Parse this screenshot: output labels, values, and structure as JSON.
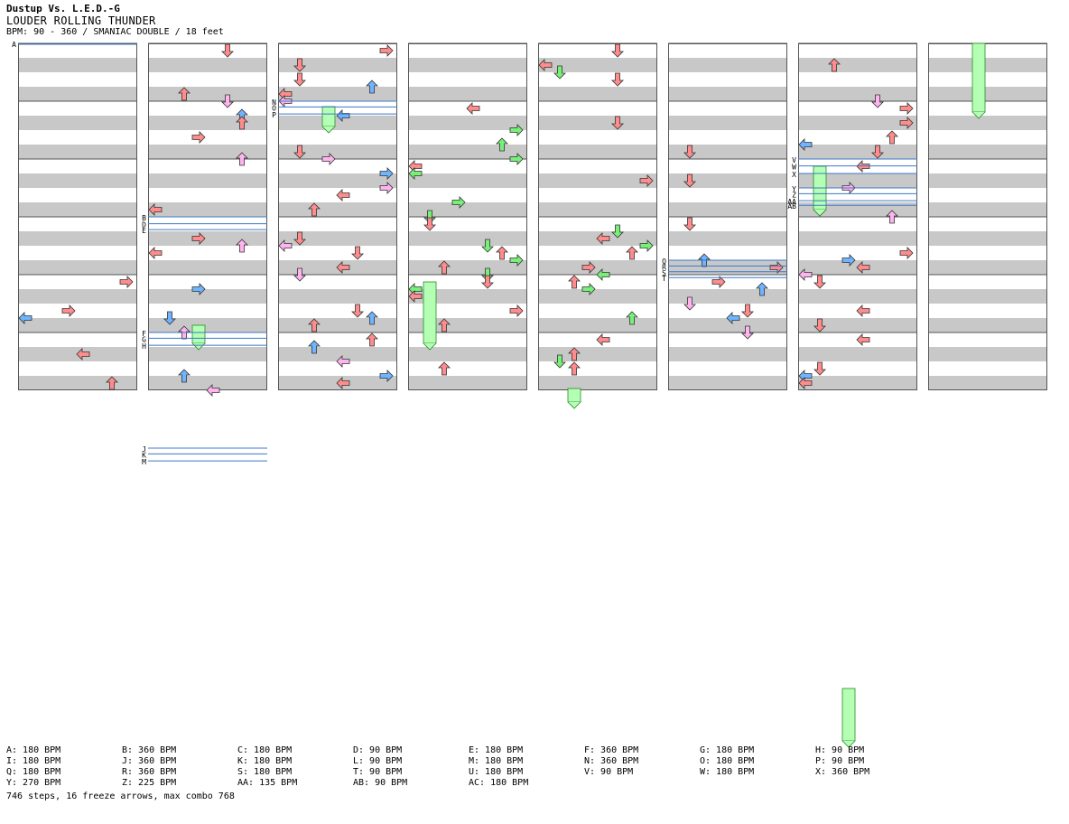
{
  "header": {
    "artist_line": "Dustup Vs. L.E.D.-G",
    "title": "LOUDER ROLLING THUNDER",
    "info": "BPM: 90 - 360 / SMANIAC DOUBLE / 18 feet"
  },
  "chart_view": {
    "columns": 8,
    "measures_per_column": 6,
    "lanes": [
      "left",
      "down",
      "up",
      "right",
      "left",
      "down",
      "up",
      "right"
    ],
    "colors": {
      "row_shade": "#c8c8c8",
      "border": "#555555",
      "red_arrow": "#ff8c8c",
      "blue_arrow": "#6fb4ff",
      "pink_arrow": "#ffb4f0",
      "green_arrow": "#78f078",
      "freeze_body": "#b4ffb4",
      "bpm_line": "#3c78c8"
    },
    "bpm_markers": [
      {
        "label": "A",
        "column": 1,
        "measure_pos": 0.0
      },
      {
        "label": "B",
        "column": 2,
        "measure_pos": 3.0
      },
      {
        "label": "D",
        "column": 2,
        "measure_pos": 3.12
      },
      {
        "label": "E",
        "column": 2,
        "measure_pos": 3.22
      },
      {
        "label": "F",
        "column": 2,
        "measure_pos": 5.0
      },
      {
        "label": "G",
        "column": 2,
        "measure_pos": 5.1
      },
      {
        "label": "H",
        "column": 2,
        "measure_pos": 5.22
      },
      {
        "label": "J",
        "column": 2,
        "measure_pos": 7.0
      },
      {
        "label": "K",
        "column": 2,
        "measure_pos": 7.1
      },
      {
        "label": "M",
        "column": 2,
        "measure_pos": 7.22
      },
      {
        "label": "N",
        "column": 3,
        "measure_pos": 1.0
      },
      {
        "label": "O",
        "column": 3,
        "measure_pos": 1.1
      },
      {
        "label": "P",
        "column": 3,
        "measure_pos": 1.22
      },
      {
        "label": "Q",
        "column": 6,
        "measure_pos": 3.75
      },
      {
        "label": "R",
        "column": 6,
        "measure_pos": 3.85
      },
      {
        "label": "S",
        "column": 6,
        "measure_pos": 3.95
      },
      {
        "label": "T",
        "column": 6,
        "measure_pos": 4.05
      },
      {
        "label": "V",
        "column": 7,
        "measure_pos": 2.0
      },
      {
        "label": "W",
        "column": 7,
        "measure_pos": 2.12
      },
      {
        "label": "X",
        "column": 7,
        "measure_pos": 2.25
      },
      {
        "label": "Y",
        "column": 7,
        "measure_pos": 2.5
      },
      {
        "label": "Z",
        "column": 7,
        "measure_pos": 2.6
      },
      {
        "label": "AA",
        "column": 7,
        "measure_pos": 2.72
      },
      {
        "label": "AB",
        "column": 7,
        "measure_pos": 2.8
      }
    ]
  },
  "bpm_legend": [
    [
      "A: 180 BPM",
      "I: 180 BPM",
      "Q: 180 BPM",
      "Y: 270 BPM"
    ],
    [
      "B: 360 BPM",
      "J: 360 BPM",
      "R: 360 BPM",
      "Z: 225 BPM"
    ],
    [
      "C: 180 BPM",
      "K: 180 BPM",
      "S: 180 BPM",
      "AA: 135 BPM"
    ],
    [
      "D: 90 BPM",
      "L: 90 BPM",
      "T: 90 BPM",
      "AB: 90 BPM"
    ],
    [
      "E: 180 BPM",
      "M: 180 BPM",
      "U: 180 BPM",
      "AC: 180 BPM"
    ],
    [
      "F: 360 BPM",
      "N: 360 BPM",
      "V: 90 BPM"
    ],
    [
      "G: 180 BPM",
      "O: 180 BPM",
      "W: 180 BPM"
    ],
    [
      "H: 90 BPM",
      "P: 90 BPM",
      "X: 360 BPM"
    ]
  ],
  "summary": "746 steps, 16 freeze arrows, max combo 768"
}
